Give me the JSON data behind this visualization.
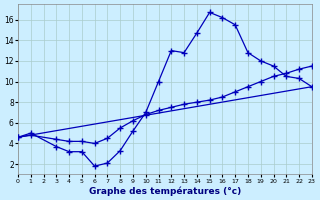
{
  "background_color": "#cceeff",
  "grid_color": "#aacccc",
  "line_color": "#0000bb",
  "xlabel": "Graphe des températures (°c)",
  "curve1_x": [
    0,
    1,
    3,
    4,
    5,
    6,
    7,
    8,
    9,
    10,
    11,
    12,
    13,
    14,
    15,
    16,
    17,
    18,
    19,
    20,
    21,
    22,
    23
  ],
  "curve1_y": [
    4.6,
    5.0,
    3.7,
    3.2,
    3.2,
    1.8,
    2.1,
    3.3,
    5.2,
    7.0,
    10.0,
    13.0,
    12.8,
    14.7,
    16.7,
    16.2,
    15.5,
    12.8,
    12.0,
    11.5,
    10.5,
    10.3,
    9.5
  ],
  "curve2_x": [
    0,
    1,
    3,
    4,
    5,
    6,
    7,
    8,
    9,
    10,
    11,
    12,
    13,
    14,
    15,
    16,
    17,
    18,
    19,
    20,
    21,
    22,
    23
  ],
  "curve2_y": [
    4.6,
    4.8,
    4.4,
    4.2,
    4.2,
    4.0,
    4.5,
    5.5,
    6.2,
    6.8,
    7.2,
    7.5,
    7.8,
    8.0,
    8.2,
    8.5,
    9.0,
    9.5,
    10.0,
    10.5,
    10.8,
    11.2,
    11.5
  ],
  "line3_x": [
    0,
    23
  ],
  "line3_y": [
    4.6,
    9.5
  ],
  "xlim": [
    0,
    23
  ],
  "ylim": [
    1,
    17.5
  ],
  "yticks": [
    2,
    4,
    6,
    8,
    10,
    12,
    14,
    16
  ],
  "xticks": [
    0,
    1,
    2,
    3,
    4,
    5,
    6,
    7,
    8,
    9,
    10,
    11,
    12,
    13,
    14,
    15,
    16,
    17,
    18,
    19,
    20,
    21,
    22,
    23
  ]
}
